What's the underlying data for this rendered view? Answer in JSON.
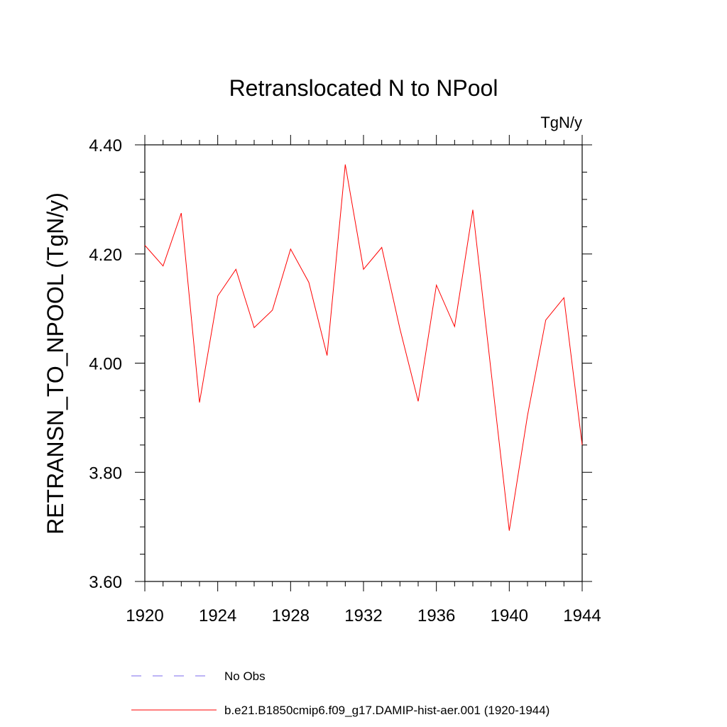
{
  "chart_data": {
    "type": "line",
    "title": "Retranslocated N to NPool",
    "units": "TgN/y",
    "ylabel": "RETRANSN_TO_NPOOL  (TgN/y)",
    "xlabel": "",
    "xlim": [
      1920,
      1944
    ],
    "ylim": [
      3.6,
      4.4
    ],
    "x_ticks": [
      1920,
      1924,
      1928,
      1932,
      1936,
      1940,
      1944
    ],
    "x_tick_labels": [
      "1920",
      "1924",
      "1928",
      "1932",
      "1936",
      "1940",
      "1944"
    ],
    "y_ticks": [
      3.6,
      3.8,
      4.0,
      4.2,
      4.4
    ],
    "y_tick_labels": [
      "3.60",
      "3.80",
      "4.00",
      "4.20",
      "4.40"
    ],
    "grid": false,
    "series": [
      {
        "name": "b.e21.B1850cmip6.f09_g17.DAMIP-hist-aer.001 (1920-1944)",
        "color": "#ff0000",
        "x": [
          1920,
          1921,
          1922,
          1923,
          1924,
          1925,
          1926,
          1927,
          1928,
          1929,
          1930,
          1931,
          1932,
          1933,
          1934,
          1935,
          1936,
          1937,
          1938,
          1939,
          1940,
          1941,
          1942,
          1943,
          1944
        ],
        "values": [
          4.216,
          4.178,
          4.275,
          3.928,
          4.123,
          4.172,
          4.065,
          4.097,
          4.209,
          4.148,
          4.014,
          4.364,
          4.172,
          4.212,
          4.063,
          3.93,
          4.143,
          4.067,
          4.281,
          3.985,
          3.693,
          3.904,
          4.079,
          4.12,
          3.85
        ]
      }
    ],
    "legend": [
      {
        "label": "No Obs",
        "color": "#7b68ee",
        "dash": "dashed"
      },
      {
        "label": "b.e21.B1850cmip6.f09_g17.DAMIP-hist-aer.001 (1920-1944)",
        "color": "#ff0000",
        "dash": "solid"
      }
    ],
    "legend_position": "bottom"
  }
}
